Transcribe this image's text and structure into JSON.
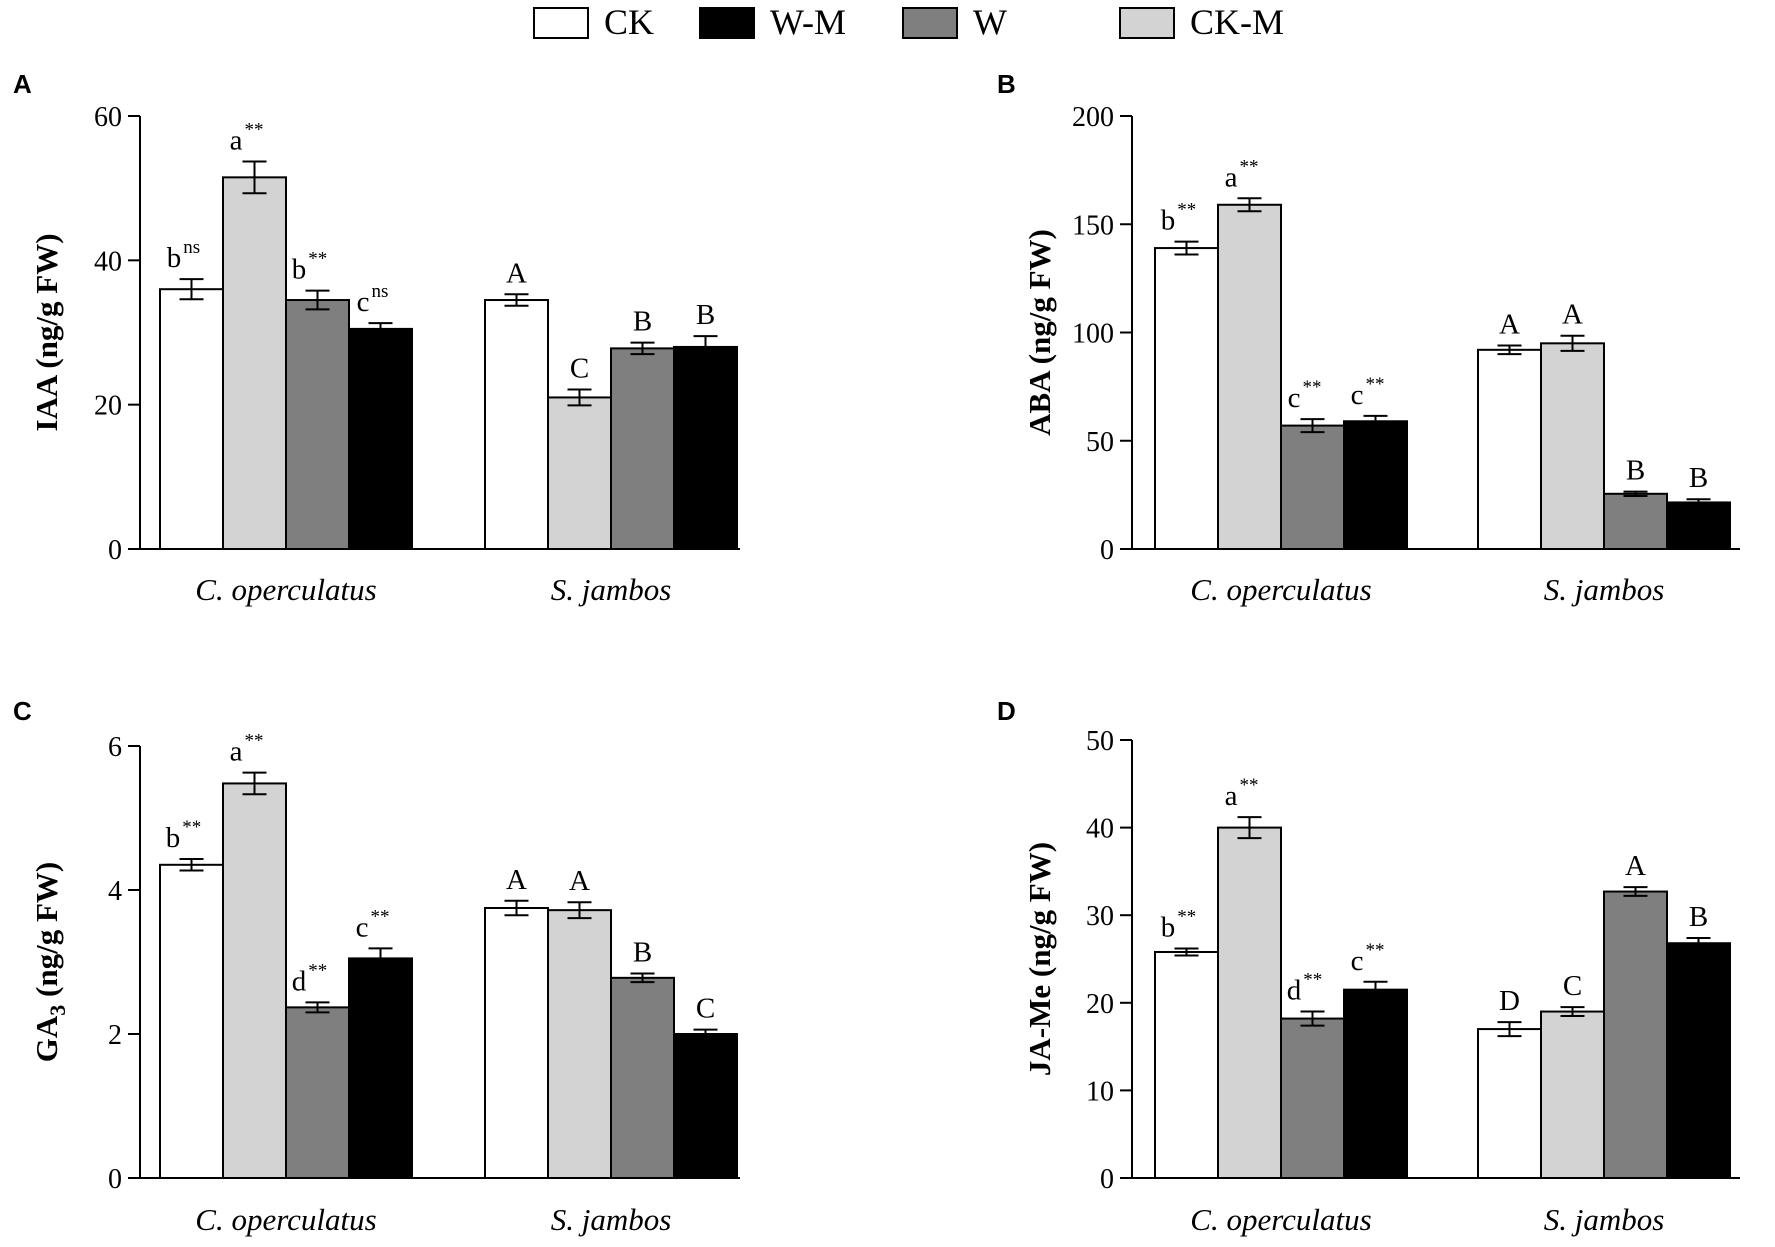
{
  "legend": [
    {
      "label": "CK",
      "color": "#ffffff"
    },
    {
      "label": "W-M",
      "color": "#000000"
    },
    {
      "label": "W",
      "color": "#7f7f7f"
    },
    {
      "label": "CK-M",
      "color": "#d3d3d3"
    }
  ],
  "bar_order": [
    "CK",
    "CK-M",
    "W",
    "W-M"
  ],
  "series_colors": {
    "CK": "#ffffff",
    "CK-M": "#d3d3d3",
    "W": "#7f7f7f",
    "W-M": "#000000"
  },
  "chart_data": [
    {
      "panel": "A",
      "type": "bar",
      "ylabel": "IAA (ng/g FW)",
      "ylim": [
        0,
        60
      ],
      "yticks": [
        0,
        20,
        40,
        60
      ],
      "categories": [
        "C. operculatus",
        "S. jambos"
      ],
      "series": [
        {
          "name": "CK",
          "values": [
            36.0,
            34.5
          ],
          "errors": [
            1.4,
            0.8
          ]
        },
        {
          "name": "CK-M",
          "values": [
            51.5,
            21.0
          ],
          "errors": [
            2.2,
            1.1
          ]
        },
        {
          "name": "W",
          "values": [
            34.5,
            27.8
          ],
          "errors": [
            1.3,
            0.8
          ]
        },
        {
          "name": "W-M",
          "values": [
            30.5,
            28.0
          ],
          "errors": [
            0.8,
            1.5
          ]
        }
      ],
      "sig_labels": [
        [
          {
            "letter": "b",
            "sup": "ns"
          },
          {
            "letter": "A",
            "sup": ""
          }
        ],
        [
          {
            "letter": "a",
            "sup": "**"
          },
          {
            "letter": "C",
            "sup": ""
          }
        ],
        [
          {
            "letter": "b",
            "sup": "**"
          },
          {
            "letter": "B",
            "sup": ""
          }
        ],
        [
          {
            "letter": "c",
            "sup": "ns"
          },
          {
            "letter": "B",
            "sup": ""
          }
        ]
      ]
    },
    {
      "panel": "B",
      "type": "bar",
      "ylabel": "ABA (ng/g FW)",
      "ylim": [
        0,
        200
      ],
      "yticks": [
        0,
        50,
        100,
        150,
        200
      ],
      "categories": [
        "C. operculatus",
        "S. jambos"
      ],
      "series": [
        {
          "name": "CK",
          "values": [
            139,
            92
          ],
          "errors": [
            3,
            2
          ]
        },
        {
          "name": "CK-M",
          "values": [
            159,
            95
          ],
          "errors": [
            3,
            3.5
          ]
        },
        {
          "name": "W",
          "values": [
            57,
            25.5
          ],
          "errors": [
            3,
            1
          ]
        },
        {
          "name": "W-M",
          "values": [
            59,
            21.5
          ],
          "errors": [
            2.5,
            1.5
          ]
        }
      ],
      "sig_labels": [
        [
          {
            "letter": "b",
            "sup": "**"
          },
          {
            "letter": "A",
            "sup": ""
          }
        ],
        [
          {
            "letter": "a",
            "sup": "**"
          },
          {
            "letter": "A",
            "sup": ""
          }
        ],
        [
          {
            "letter": "c",
            "sup": "**"
          },
          {
            "letter": "B",
            "sup": ""
          }
        ],
        [
          {
            "letter": "c",
            "sup": "**"
          },
          {
            "letter": "B",
            "sup": ""
          }
        ]
      ]
    },
    {
      "panel": "C",
      "type": "bar",
      "ylabel": "GA",
      "ylabel_sub": "3",
      "ylabel_rest": " (ng/g FW)",
      "ylim": [
        0,
        6
      ],
      "yticks": [
        0,
        2,
        4,
        6
      ],
      "categories": [
        "C. operculatus",
        "S. jambos"
      ],
      "series": [
        {
          "name": "CK",
          "values": [
            4.35,
            3.75
          ],
          "errors": [
            0.08,
            0.1
          ]
        },
        {
          "name": "CK-M",
          "values": [
            5.48,
            3.72
          ],
          "errors": [
            0.15,
            0.11
          ]
        },
        {
          "name": "W",
          "values": [
            2.37,
            2.78
          ],
          "errors": [
            0.07,
            0.06
          ]
        },
        {
          "name": "W-M",
          "values": [
            3.05,
            2.0
          ],
          "errors": [
            0.14,
            0.06
          ]
        }
      ],
      "sig_labels": [
        [
          {
            "letter": "b",
            "sup": "**"
          },
          {
            "letter": "A",
            "sup": ""
          }
        ],
        [
          {
            "letter": "a",
            "sup": "**"
          },
          {
            "letter": "A",
            "sup": ""
          }
        ],
        [
          {
            "letter": "d",
            "sup": "**"
          },
          {
            "letter": "B",
            "sup": ""
          }
        ],
        [
          {
            "letter": "c",
            "sup": "**"
          },
          {
            "letter": "C",
            "sup": ""
          }
        ]
      ]
    },
    {
      "panel": "D",
      "type": "bar",
      "ylabel": "JA-Me (ng/g FW)",
      "ylim": [
        0,
        50
      ],
      "yticks": [
        0,
        10,
        20,
        30,
        40,
        50
      ],
      "categories": [
        "C. operculatus",
        "S. jambos"
      ],
      "series": [
        {
          "name": "CK",
          "values": [
            25.8,
            17.0
          ],
          "errors": [
            0.4,
            0.8
          ]
        },
        {
          "name": "CK-M",
          "values": [
            40.0,
            19.0
          ],
          "errors": [
            1.2,
            0.5
          ]
        },
        {
          "name": "W",
          "values": [
            18.2,
            32.7
          ],
          "errors": [
            0.8,
            0.5
          ]
        },
        {
          "name": "W-M",
          "values": [
            21.5,
            26.8
          ],
          "errors": [
            0.9,
            0.6
          ]
        }
      ],
      "sig_labels": [
        [
          {
            "letter": "b",
            "sup": "**"
          },
          {
            "letter": "D",
            "sup": ""
          }
        ],
        [
          {
            "letter": "a",
            "sup": "**"
          },
          {
            "letter": "C",
            "sup": ""
          }
        ],
        [
          {
            "letter": "d",
            "sup": "**"
          },
          {
            "letter": "A",
            "sup": ""
          }
        ],
        [
          {
            "letter": "c",
            "sup": "**"
          },
          {
            "letter": "B",
            "sup": ""
          }
        ]
      ]
    }
  ]
}
